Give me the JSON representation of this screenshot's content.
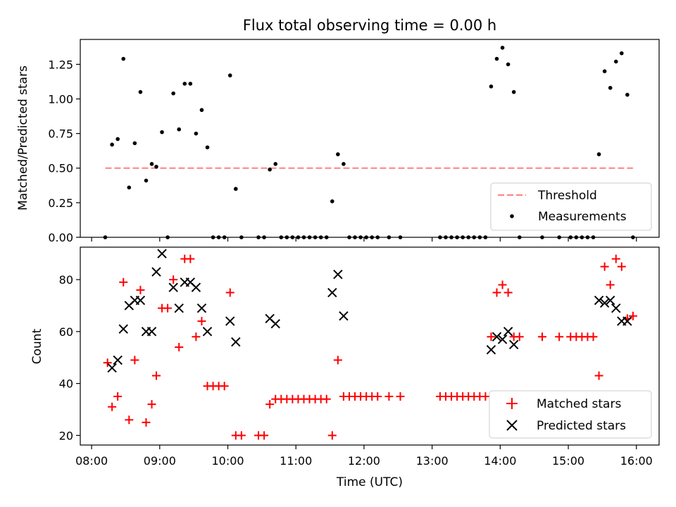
{
  "chart_data": [
    {
      "type": "scatter",
      "title": "Flux total observing time = 0.00 h",
      "xlabel": "",
      "ylabel": "Matched/Predicted stars",
      "ylim": [
        0,
        1.43
      ],
      "yticks": [
        "0.00",
        "0.25",
        "0.50",
        "0.75",
        "1.00",
        "1.25"
      ],
      "yticks_values": [
        0,
        0.25,
        0.5,
        0.75,
        1.0,
        1.25
      ],
      "legend_position": "bottom-right",
      "threshold": {
        "name": "Threshold",
        "value": 0.5,
        "x_range": [
          "08:12",
          "15:57"
        ],
        "color": "#ff8080"
      },
      "series": [
        {
          "name": "Measurements",
          "color": "#000000",
          "points": [
            [
              "08:12",
              0.0
            ],
            [
              "08:18",
              0.67
            ],
            [
              "08:23",
              0.71
            ],
            [
              "08:28",
              1.29
            ],
            [
              "08:33",
              0.36
            ],
            [
              "08:38",
              0.68
            ],
            [
              "08:43",
              1.05
            ],
            [
              "08:48",
              0.41
            ],
            [
              "08:53",
              0.53
            ],
            [
              "08:57",
              0.51
            ],
            [
              "09:02",
              0.76
            ],
            [
              "09:07",
              0.0
            ],
            [
              "09:12",
              1.04
            ],
            [
              "09:17",
              0.78
            ],
            [
              "09:22",
              1.11
            ],
            [
              "09:27",
              1.11
            ],
            [
              "09:32",
              0.75
            ],
            [
              "09:37",
              0.92
            ],
            [
              "09:42",
              0.65
            ],
            [
              "09:47",
              0.0
            ],
            [
              "09:52",
              0.0
            ],
            [
              "09:57",
              0.0
            ],
            [
              "10:02",
              1.17
            ],
            [
              "10:07",
              0.35
            ],
            [
              "10:12",
              0.0
            ],
            [
              "10:27",
              0.0
            ],
            [
              "10:32",
              0.0
            ],
            [
              "10:37",
              0.49
            ],
            [
              "10:42",
              0.53
            ],
            [
              "10:47",
              0.0
            ],
            [
              "10:52",
              0.0
            ],
            [
              "10:57",
              0.0
            ],
            [
              "11:02",
              0.0
            ],
            [
              "11:07",
              0.0
            ],
            [
              "11:12",
              0.0
            ],
            [
              "11:17",
              0.0
            ],
            [
              "11:22",
              0.0
            ],
            [
              "11:27",
              0.0
            ],
            [
              "11:32",
              0.26
            ],
            [
              "11:37",
              0.6
            ],
            [
              "11:42",
              0.53
            ],
            [
              "11:47",
              0.0
            ],
            [
              "11:52",
              0.0
            ],
            [
              "11:57",
              0.0
            ],
            [
              "12:02",
              0.0
            ],
            [
              "12:07",
              0.0
            ],
            [
              "12:12",
              0.0
            ],
            [
              "12:22",
              0.0
            ],
            [
              "12:32",
              0.0
            ],
            [
              "13:07",
              0.0
            ],
            [
              "13:12",
              0.0
            ],
            [
              "13:17",
              0.0
            ],
            [
              "13:22",
              0.0
            ],
            [
              "13:27",
              0.0
            ],
            [
              "13:32",
              0.0
            ],
            [
              "13:37",
              0.0
            ],
            [
              "13:42",
              0.0
            ],
            [
              "13:47",
              0.0
            ],
            [
              "13:52",
              1.09
            ],
            [
              "13:57",
              1.29
            ],
            [
              "14:02",
              1.37
            ],
            [
              "14:07",
              1.25
            ],
            [
              "14:12",
              1.05
            ],
            [
              "14:17",
              0.0
            ],
            [
              "14:37",
              0.0
            ],
            [
              "14:52",
              0.0
            ],
            [
              "15:02",
              0.0
            ],
            [
              "15:07",
              0.0
            ],
            [
              "15:12",
              0.0
            ],
            [
              "15:17",
              0.0
            ],
            [
              "15:22",
              0.0
            ],
            [
              "15:27",
              0.6
            ],
            [
              "15:32",
              1.2
            ],
            [
              "15:37",
              1.08
            ],
            [
              "15:42",
              1.27
            ],
            [
              "15:47",
              1.33
            ],
            [
              "15:52",
              1.03
            ],
            [
              "15:57",
              0.0
            ]
          ]
        }
      ]
    },
    {
      "type": "scatter",
      "title": "",
      "xlabel": "Time (UTC)",
      "ylabel": "Count",
      "xlim": [
        "07:50",
        "16:20"
      ],
      "ylim": [
        16.3,
        92.5
      ],
      "xticks": [
        "08:00",
        "09:00",
        "10:00",
        "11:00",
        "12:00",
        "13:00",
        "14:00",
        "15:00",
        "16:00"
      ],
      "yticks": [
        "20",
        "40",
        "60",
        "80"
      ],
      "yticks_values": [
        20,
        40,
        60,
        80
      ],
      "legend_position": "bottom-right",
      "series": [
        {
          "name": "Matched stars",
          "marker": "+",
          "color": "#ff0000",
          "points": [
            [
              "08:14",
              48
            ],
            [
              "08:18",
              31
            ],
            [
              "08:23",
              35
            ],
            [
              "08:28",
              79
            ],
            [
              "08:33",
              26
            ],
            [
              "08:38",
              49
            ],
            [
              "08:43",
              76
            ],
            [
              "08:48",
              25
            ],
            [
              "08:53",
              32
            ],
            [
              "08:57",
              43
            ],
            [
              "09:02",
              69
            ],
            [
              "09:07",
              69
            ],
            [
              "09:12",
              80
            ],
            [
              "09:17",
              54
            ],
            [
              "09:22",
              88
            ],
            [
              "09:27",
              88
            ],
            [
              "09:32",
              58
            ],
            [
              "09:37",
              64
            ],
            [
              "09:42",
              39
            ],
            [
              "09:47",
              39
            ],
            [
              "09:52",
              39
            ],
            [
              "09:57",
              39
            ],
            [
              "10:02",
              75
            ],
            [
              "10:07",
              20
            ],
            [
              "10:12",
              20
            ],
            [
              "10:27",
              20
            ],
            [
              "10:32",
              20
            ],
            [
              "10:37",
              32
            ],
            [
              "10:42",
              34
            ],
            [
              "10:47",
              34
            ],
            [
              "10:52",
              34
            ],
            [
              "10:57",
              34
            ],
            [
              "11:02",
              34
            ],
            [
              "11:07",
              34
            ],
            [
              "11:12",
              34
            ],
            [
              "11:17",
              34
            ],
            [
              "11:22",
              34
            ],
            [
              "11:27",
              34
            ],
            [
              "11:32",
              20
            ],
            [
              "11:37",
              49
            ],
            [
              "11:42",
              35
            ],
            [
              "11:47",
              35
            ],
            [
              "11:52",
              35
            ],
            [
              "11:57",
              35
            ],
            [
              "12:02",
              35
            ],
            [
              "12:07",
              35
            ],
            [
              "12:12",
              35
            ],
            [
              "12:22",
              35
            ],
            [
              "12:32",
              35
            ],
            [
              "13:07",
              35
            ],
            [
              "13:12",
              35
            ],
            [
              "13:17",
              35
            ],
            [
              "13:22",
              35
            ],
            [
              "13:27",
              35
            ],
            [
              "13:32",
              35
            ],
            [
              "13:37",
              35
            ],
            [
              "13:42",
              35
            ],
            [
              "13:47",
              35
            ],
            [
              "13:52",
              58
            ],
            [
              "13:57",
              75
            ],
            [
              "14:02",
              78
            ],
            [
              "14:07",
              75
            ],
            [
              "14:12",
              58
            ],
            [
              "14:17",
              58
            ],
            [
              "14:37",
              58
            ],
            [
              "14:52",
              58
            ],
            [
              "15:02",
              58
            ],
            [
              "15:07",
              58
            ],
            [
              "15:12",
              58
            ],
            [
              "15:17",
              58
            ],
            [
              "15:22",
              58
            ],
            [
              "15:27",
              43
            ],
            [
              "15:32",
              85
            ],
            [
              "15:37",
              78
            ],
            [
              "15:42",
              88
            ],
            [
              "15:47",
              85
            ],
            [
              "15:52",
              65
            ],
            [
              "15:57",
              66
            ]
          ]
        },
        {
          "name": "Predicted stars",
          "marker": "x",
          "color": "#000000",
          "points": [
            [
              "08:18",
              46
            ],
            [
              "08:23",
              49
            ],
            [
              "08:28",
              61
            ],
            [
              "08:33",
              70
            ],
            [
              "08:38",
              72
            ],
            [
              "08:43",
              72
            ],
            [
              "08:48",
              60
            ],
            [
              "08:53",
              60
            ],
            [
              "08:57",
              83
            ],
            [
              "09:02",
              90
            ],
            [
              "09:12",
              77
            ],
            [
              "09:17",
              69
            ],
            [
              "09:22",
              79
            ],
            [
              "09:27",
              79
            ],
            [
              "09:32",
              77
            ],
            [
              "09:37",
              69
            ],
            [
              "09:42",
              60
            ],
            [
              "10:02",
              64
            ],
            [
              "10:07",
              56
            ],
            [
              "10:37",
              65
            ],
            [
              "10:42",
              63
            ],
            [
              "11:32",
              75
            ],
            [
              "11:37",
              82
            ],
            [
              "11:42",
              66
            ],
            [
              "13:52",
              53
            ],
            [
              "13:57",
              58
            ],
            [
              "14:02",
              57
            ],
            [
              "14:07",
              60
            ],
            [
              "14:12",
              55
            ],
            [
              "15:27",
              72
            ],
            [
              "15:32",
              71
            ],
            [
              "15:37",
              72
            ],
            [
              "15:42",
              69
            ],
            [
              "15:47",
              64
            ],
            [
              "15:52",
              64
            ]
          ]
        }
      ]
    }
  ]
}
